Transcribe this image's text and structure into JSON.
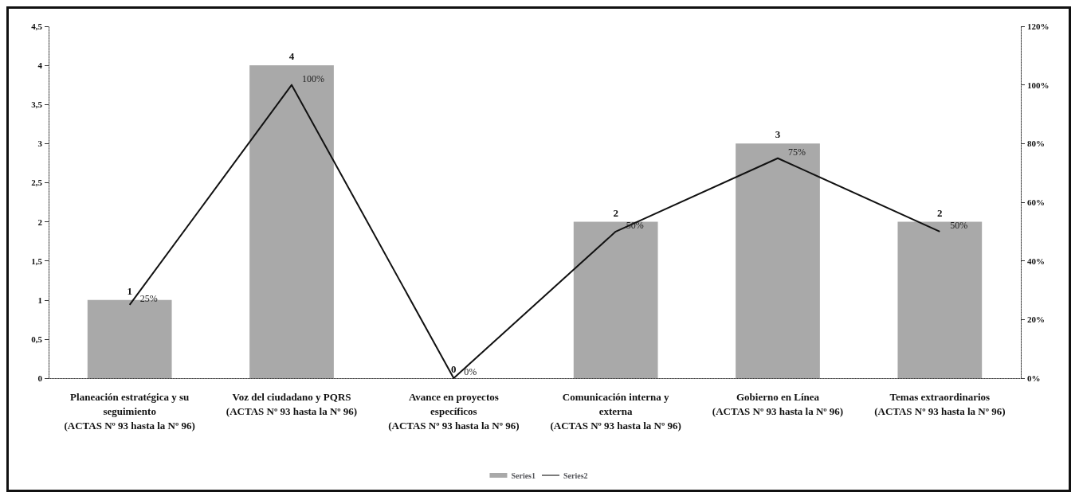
{
  "chart_data": {
    "type": "bar",
    "categories": [
      "Planeación estratégica y su\nseguimiento\n(ACTAS Nº 93 hasta la Nº 96)",
      "Voz del ciudadano y PQRS\n(ACTAS Nº 93 hasta la Nº 96)",
      "Avance en proyectos\nespecíficos\n(ACTAS Nº 93 hasta la Nº 96)",
      "Comunicación interna y\nexterna\n(ACTAS Nº 93 hasta la Nº 96)",
      "Gobierno en Línea\n(ACTAS Nº 93 hasta la Nº 96)",
      "Temas extraordinarios\n(ACTAS Nº 93 hasta la Nº 96)"
    ],
    "series": [
      {
        "name": "Series1",
        "color": "#a9a9a9",
        "values": [
          1,
          4,
          0,
          2,
          3,
          2
        ],
        "data_labels": true
      },
      {
        "name": "Series2",
        "type": "line",
        "axis": "y2",
        "color": "#111111",
        "values": [
          25,
          100,
          0,
          50,
          75,
          50
        ],
        "value_labels": [
          "25%",
          "100%",
          "0%",
          "50%",
          "75%",
          "50%"
        ]
      }
    ],
    "ylim": [
      0,
      4.5
    ],
    "yticks": [
      0,
      {
        "value": 0.5,
        "label": "0,5"
      },
      1,
      {
        "value": 1.5,
        "label": "1,5"
      },
      2,
      {
        "value": 2.5,
        "label": "2,5"
      },
      3,
      {
        "value": 3.5,
        "label": "3,5"
      },
      4,
      {
        "value": 4.5,
        "label": "4,5"
      }
    ],
    "y2lim": [
      0,
      120
    ],
    "y2ticks": [
      {
        "value": 0,
        "label": "0%"
      },
      {
        "value": 20,
        "label": "20%"
      },
      {
        "value": 40,
        "label": "40%"
      },
      {
        "value": 60,
        "label": "60%"
      },
      {
        "value": 80,
        "label": "80%"
      },
      {
        "value": 100,
        "label": "100%"
      },
      {
        "value": 120,
        "label": "120%"
      }
    ],
    "grid": false,
    "legend": "bottom",
    "marker": "none",
    "line_style": "solid"
  }
}
